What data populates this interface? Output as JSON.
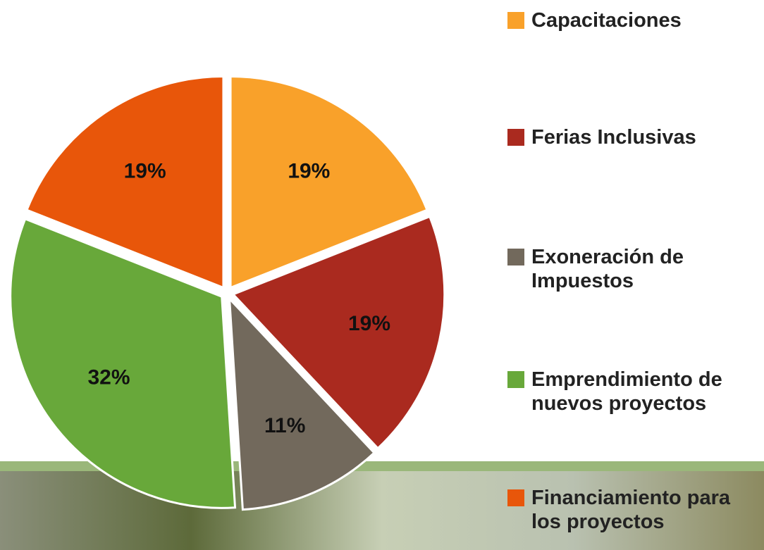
{
  "chart_data": {
    "type": "pie",
    "categories": [
      "Capacitaciones",
      "Ferias Inclusivas",
      "Exoneración de Impuestos",
      "Emprendimiento de nuevos proyectos",
      "Financiamiento para los proyectos"
    ],
    "values": [
      19,
      19,
      11,
      32,
      19
    ],
    "value_labels": [
      "19%",
      "19%",
      "11%",
      "32%",
      "19%"
    ],
    "colors": [
      "#f9a12a",
      "#aa2a1f",
      "#72695c",
      "#68a83a",
      "#e8560a"
    ],
    "legend": "right"
  }
}
